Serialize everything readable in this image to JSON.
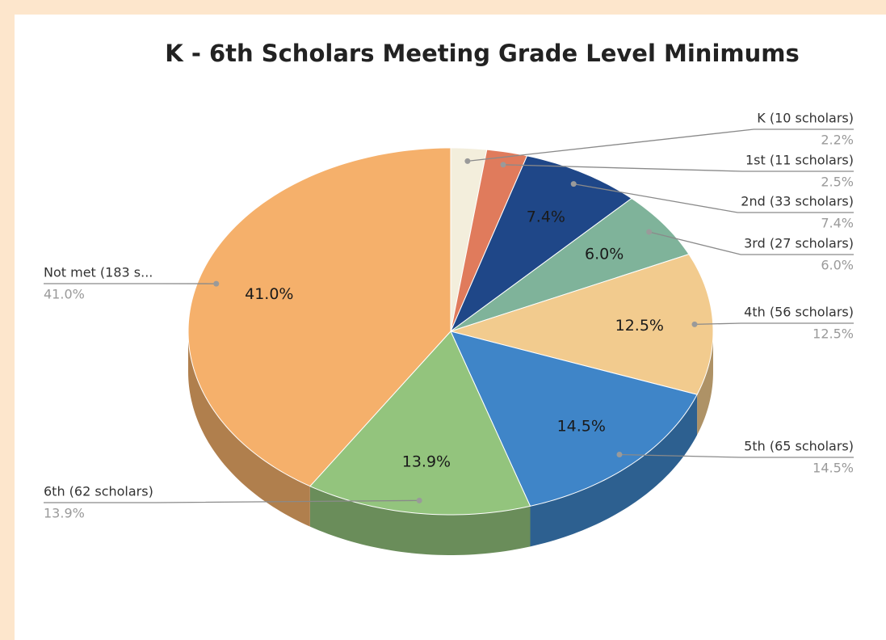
{
  "chart_data": {
    "type": "pie",
    "title": "K - 6th Scholars Meeting Grade Level Minimums",
    "categories": [
      "K  (10 scholars)",
      "1st (11 scholars)",
      "2nd (33 scholars)",
      "3rd (27 scholars)",
      "4th (56 scholars)",
      "5th (65 scholars)",
      "6th (62 scholars)",
      "Not met (183 s..."
    ],
    "values": [
      2.2,
      2.5,
      7.4,
      6.0,
      12.5,
      14.5,
      13.9,
      41.0
    ],
    "value_labels": [
      "2.2%",
      "2.5%",
      "7.4%",
      "6.0%",
      "12.5%",
      "14.5%",
      "13.9%",
      "41.0%"
    ],
    "colors": [
      "#f3eedc",
      "#e07b5c",
      "#1f4788",
      "#7fb39a",
      "#f2cb8e",
      "#3f85c8",
      "#93c47d",
      "#f5b06b"
    ],
    "legend": false
  }
}
